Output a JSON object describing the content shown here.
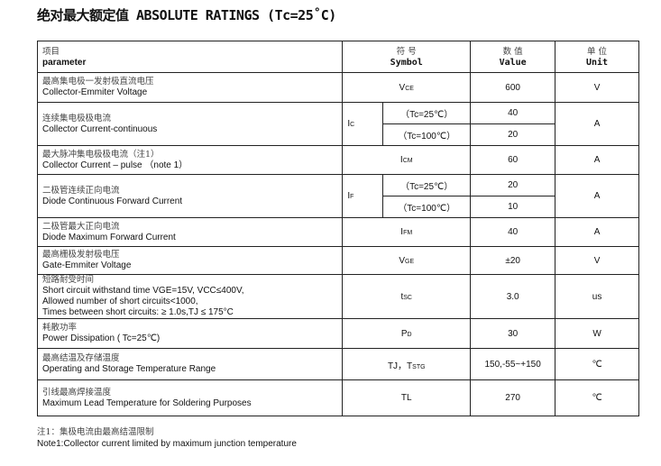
{
  "title": "绝对最大额定值 ABSOLUTE RATINGS (Tc=25˚C)",
  "header": {
    "param_zh": "项目",
    "param_en": "parameter",
    "symbol_zh": "符 号",
    "symbol_en": "Symbol",
    "value_zh": "数 值",
    "value_en": "Value",
    "unit_zh": "单 位",
    "unit_en": "Unit"
  },
  "rows": [
    {
      "zh": "最高集电极一发射极直流电压",
      "en": "Collector-Emmiter Voltage",
      "sym": "V",
      "sub": "CE",
      "value": "600",
      "unit": "V"
    },
    {
      "zh": "连续集电极极电流",
      "en": "Collector Current-continuous",
      "sym": "I",
      "sub": "C",
      "cond1": "（Tc=25℃）",
      "value1": "40",
      "cond2": "（Tc=100℃）",
      "value2": "20",
      "unit": "A"
    },
    {
      "zh": "最大脉冲集电极极电流（注1）",
      "en": "Collector Current – pulse （note 1）",
      "sym": "I",
      "sub": "CM",
      "value": "60",
      "unit": "A"
    },
    {
      "zh": "二极管连续正向电流",
      "en": "Diode Continuous Forward Current",
      "sym": "I",
      "sub": "F",
      "cond1": "（Tc=25℃）",
      "value1": "20",
      "cond2": "（Tc=100℃）",
      "value2": "10",
      "unit": "A"
    },
    {
      "zh": "二极管最大正向电流",
      "en": "Diode Maximum Forward Current",
      "sym": "I",
      "sub": "FM",
      "value": "40",
      "unit": "A"
    },
    {
      "zh": "最高栅极发射极电压",
      "en": "Gate-Emmiter Voltage",
      "sym": "V",
      "sub": "GE",
      "value": "±20",
      "unit": "V"
    },
    {
      "zh": "短路耐受时间",
      "en": "Short circuit withstand time VGE=15V, VCC≤400V,",
      "en2": "Allowed number of short circuits<1000,",
      "en3": "Times between short circuits: ≥ 1.0s,TJ ≤ 175°C",
      "sym": "t",
      "sub": "SC",
      "value": "3.0",
      "unit": "us"
    },
    {
      "zh": "耗散功率",
      "en": "Power Dissipation ( Tc=25℃)",
      "sym": "P",
      "sub": "D",
      "value": "30",
      "unit": "W"
    },
    {
      "zh": "最高结温及存储温度",
      "en": "Operating and Storage Temperature Range",
      "sym": "TJ，T",
      "sub": "STG",
      "value": "150,-55~+150",
      "unit": "℃"
    },
    {
      "zh": "引线最高焊接温度",
      "en": "Maximum Lead Temperature for Soldering Purposes",
      "sym": "TL",
      "sub": "",
      "value": "270",
      "unit": "℃"
    }
  ],
  "notes": {
    "zh": "注1：集极电流由最高结温限制",
    "en": "Note1:Collector current limited by maximum junction temperature"
  }
}
